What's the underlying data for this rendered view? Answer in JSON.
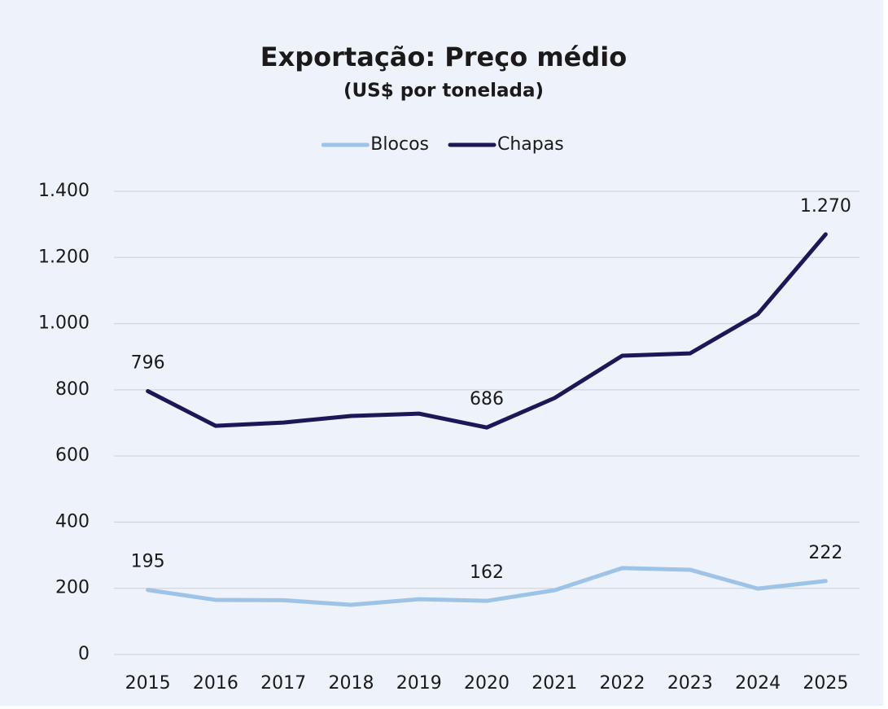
{
  "chart_data": {
    "type": "line",
    "title": "Exportação: Preço médio",
    "subtitle": "(US$ por tonelada)",
    "categories": [
      "2015",
      "2016",
      "2017",
      "2018",
      "2019",
      "2020",
      "2021",
      "2022",
      "2023",
      "2024",
      "2025"
    ],
    "series": [
      {
        "name": "Blocos",
        "color": "#9dc3e6",
        "values": [
          195,
          165,
          164,
          150,
          167,
          162,
          194,
          261,
          256,
          199,
          222
        ],
        "value_labels": [
          "195",
          null,
          null,
          null,
          null,
          "162",
          null,
          null,
          null,
          null,
          "222"
        ]
      },
      {
        "name": "Chapas",
        "color": "#1c1857",
        "values": [
          796,
          691,
          701,
          721,
          728,
          686,
          775,
          903,
          910,
          1029,
          1270
        ],
        "value_labels": [
          "796",
          null,
          null,
          null,
          null,
          "686",
          null,
          null,
          null,
          null,
          "1.270"
        ]
      }
    ],
    "ylim": [
      0,
      1400
    ],
    "yticks": [
      0,
      200,
      400,
      600,
      800,
      {
        "value": 1000,
        "label": "1.000"
      },
      {
        "value": 1200,
        "label": "1.200"
      },
      {
        "value": 1400,
        "label": "1.400"
      }
    ],
    "grid": true,
    "legend": "top"
  }
}
